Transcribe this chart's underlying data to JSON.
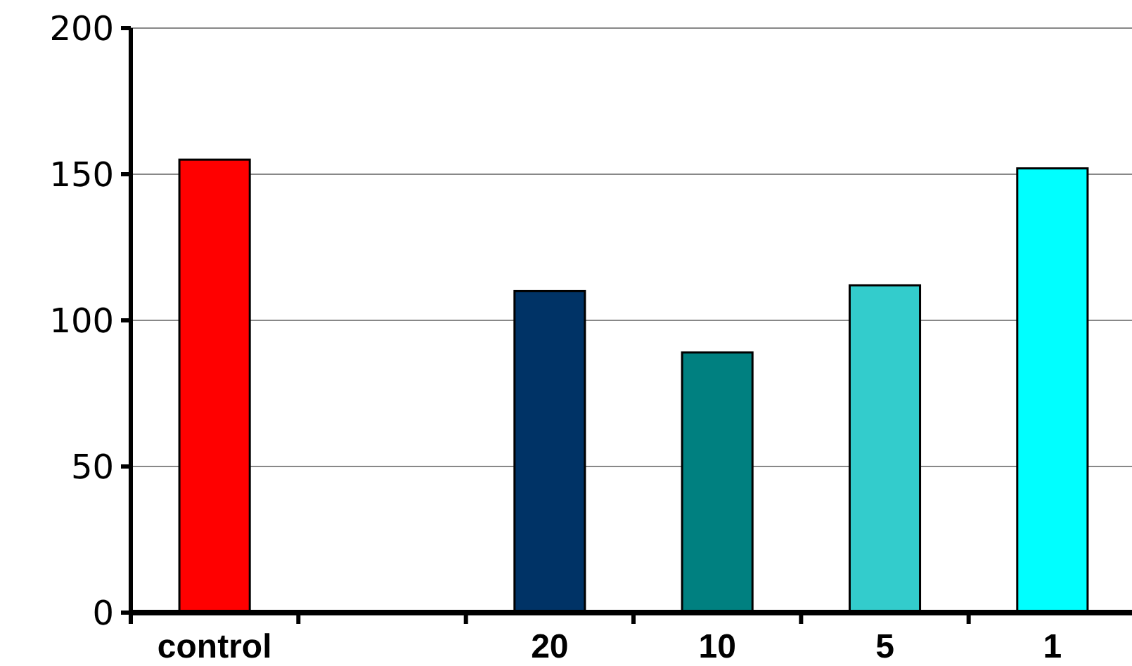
{
  "chart_data": {
    "type": "bar",
    "categories": [
      "control",
      null,
      "20",
      "10",
      "5",
      "1"
    ],
    "values": [
      155,
      null,
      110,
      89,
      112,
      152
    ],
    "colors": [
      "#ff0000",
      null,
      "#003366",
      "#008080",
      "#33cccc",
      "#00ffff"
    ],
    "ylim": [
      0,
      200
    ],
    "yticks": [
      0,
      50,
      100,
      150,
      200
    ],
    "grid": "y"
  }
}
